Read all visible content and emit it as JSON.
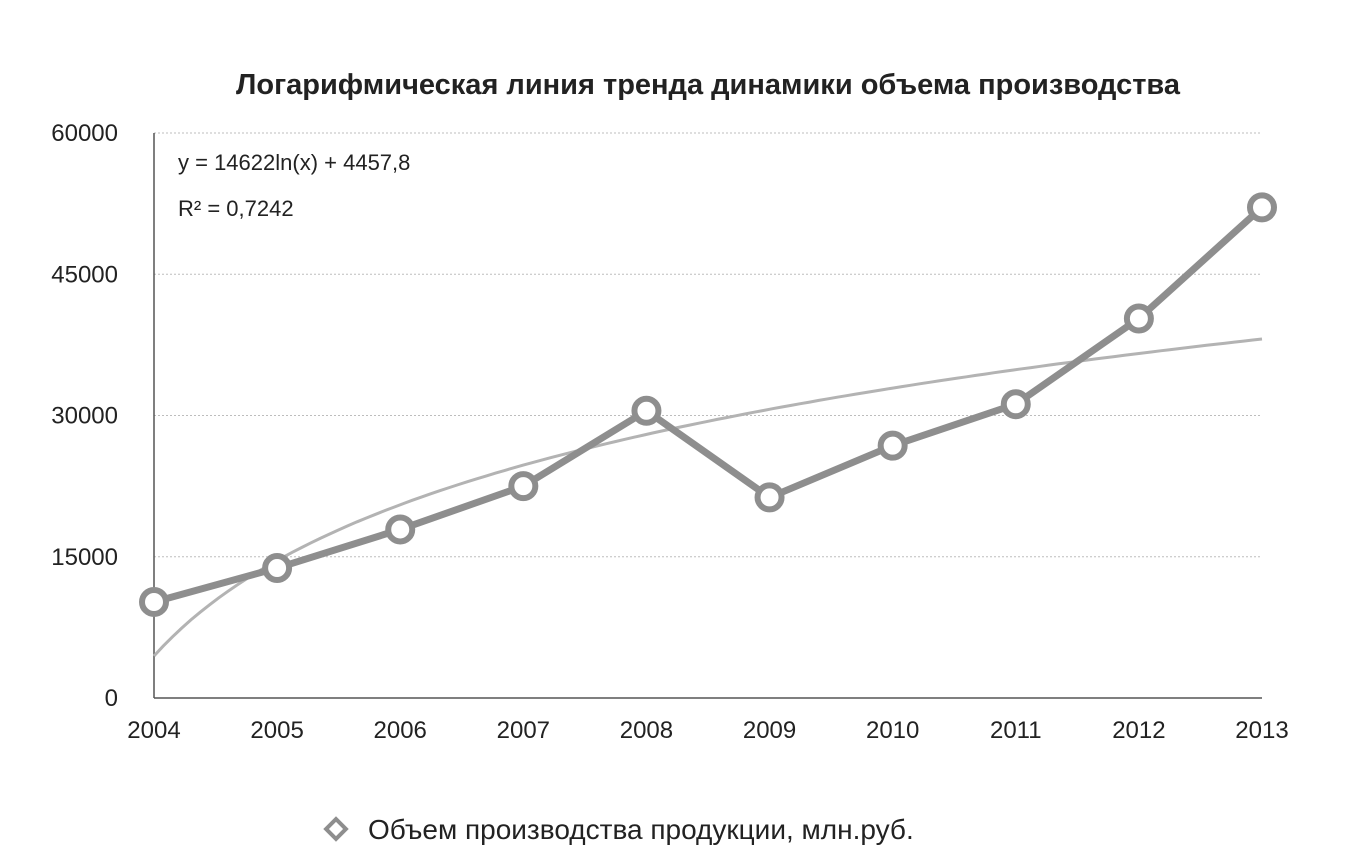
{
  "chart_data": {
    "type": "line",
    "title": "Логарифмическая линия тренда динамики объема производства",
    "xlabel": "",
    "ylabel": "",
    "categories": [
      "2004",
      "2005",
      "2006",
      "2007",
      "2008",
      "2009",
      "2010",
      "2011",
      "2012",
      "2013"
    ],
    "ylim": [
      0,
      60000
    ],
    "yticks": [
      "60000",
      "45000",
      "30000",
      "15000",
      "0"
    ],
    "grid": "horizontal, dotted",
    "series": [
      {
        "name": "Объем производства продукции, млн.руб.",
        "values": [
          10200,
          13800,
          17900,
          22500,
          30500,
          21300,
          26800,
          31200,
          40300,
          52100
        ],
        "color": "#8e8e8e"
      }
    ],
    "trendline": {
      "type": "logarithmic",
      "equation": "y = 14622ln(x) + 4457,8",
      "r_squared": "R² = 0,7242",
      "coef_a": 14622,
      "coef_b": 4457.8,
      "color": "#b3b3b3"
    },
    "legend_position": "bottom-center"
  }
}
